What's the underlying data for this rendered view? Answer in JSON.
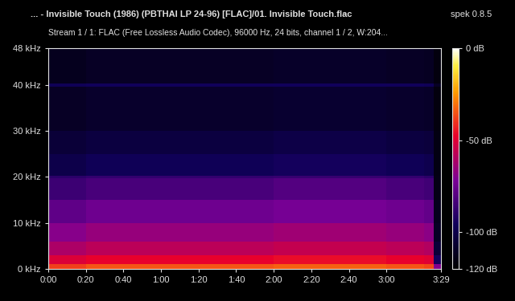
{
  "chart_data": {
    "type": "heatmap",
    "title": "... - Invisible Touch (1986) (PBTHAl LP 24-96) [FLAC]/01. Invisible Touch.flac",
    "annotation": "spek 0.8.5",
    "subtitle": "Stream 1 / 1: FLAC (Free Lossless Audio Codec), 96000 Hz, 24 bits, channel 1 / 2, W:204...",
    "time_edges": [
      0,
      20,
      40,
      60,
      80,
      100,
      120,
      140,
      160,
      180,
      200,
      205,
      209
    ],
    "freq_edges": [
      0,
      1,
      3,
      6,
      10,
      15,
      19.7,
      20.3,
      25,
      30,
      39.7,
      40.3,
      48
    ],
    "cells": [
      [
        -38,
        -35,
        -35,
        -35,
        -35,
        -35,
        -33,
        -33,
        -33,
        -35,
        -37,
        -70
      ],
      [
        -51,
        -48,
        -48,
        -48,
        -48,
        -48,
        -46,
        -46,
        -46,
        -48,
        -50,
        -95
      ],
      [
        -61,
        -58,
        -58,
        -58,
        -58,
        -58,
        -56,
        -56,
        -56,
        -58,
        -60,
        -105
      ],
      [
        -69,
        -66,
        -66,
        -66,
        -66,
        -66,
        -64,
        -64,
        -64,
        -66,
        -68,
        -110
      ],
      [
        -78,
        -75,
        -75,
        -75,
        -75,
        -75,
        -73,
        -73,
        -73,
        -75,
        -77,
        -112
      ],
      [
        -86,
        -83,
        -83,
        -83,
        -83,
        -83,
        -81,
        -81,
        -81,
        -83,
        -85,
        -114
      ],
      [
        -90,
        -88,
        -88,
        -88,
        -88,
        -88,
        -87,
        -87,
        -87,
        -88,
        -90,
        -114
      ],
      [
        -100,
        -97,
        -97,
        -97,
        -97,
        -97,
        -95,
        -95,
        -95,
        -97,
        -99,
        -115
      ],
      [
        -105,
        -103,
        -103,
        -103,
        -103,
        -103,
        -101,
        -101,
        -101,
        -103,
        -104,
        -115
      ],
      [
        -110,
        -108,
        -108,
        -108,
        -108,
        -108,
        -107,
        -107,
        -107,
        -108,
        -109,
        -116
      ],
      [
        -97,
        -96,
        -96,
        -96,
        -96,
        -96,
        -96,
        -96,
        -96,
        -96,
        -97,
        -110
      ],
      [
        -112,
        -110,
        -110,
        -110,
        -110,
        -110,
        -109,
        -109,
        -109,
        -110,
        -111,
        -116
      ]
    ],
    "xlim": [
      0,
      209
    ],
    "xticks": [
      {
        "value": 0,
        "label": "0:00"
      },
      {
        "value": 20,
        "label": "0:20"
      },
      {
        "value": 40,
        "label": "0:40"
      },
      {
        "value": 60,
        "label": "1:00"
      },
      {
        "value": 80,
        "label": "1:20"
      },
      {
        "value": 100,
        "label": "1:40"
      },
      {
        "value": 120,
        "label": "2:00"
      },
      {
        "value": 140,
        "label": "2:20"
      },
      {
        "value": 160,
        "label": "2:40"
      },
      {
        "value": 180,
        "label": "3:00"
      },
      {
        "value": 209,
        "label": "3:29"
      }
    ],
    "ylim": [
      0,
      48
    ],
    "yticks": [
      {
        "value": 0,
        "label": "0 kHz"
      },
      {
        "value": 10,
        "label": "10 kHz"
      },
      {
        "value": 20,
        "label": "20 kHz"
      },
      {
        "value": 30,
        "label": "30 kHz"
      },
      {
        "value": 40,
        "label": "40 kHz"
      },
      {
        "value": 48,
        "label": "48 kHz"
      }
    ],
    "colorbar_range": [
      -120,
      0
    ],
    "colorbar_ticks": [
      {
        "value": 0,
        "label": "0 dB"
      },
      {
        "value": -50,
        "label": "-50 dB"
      },
      {
        "value": -100,
        "label": "-100 dB"
      },
      {
        "value": -120,
        "label": "-120 dB"
      }
    ]
  }
}
